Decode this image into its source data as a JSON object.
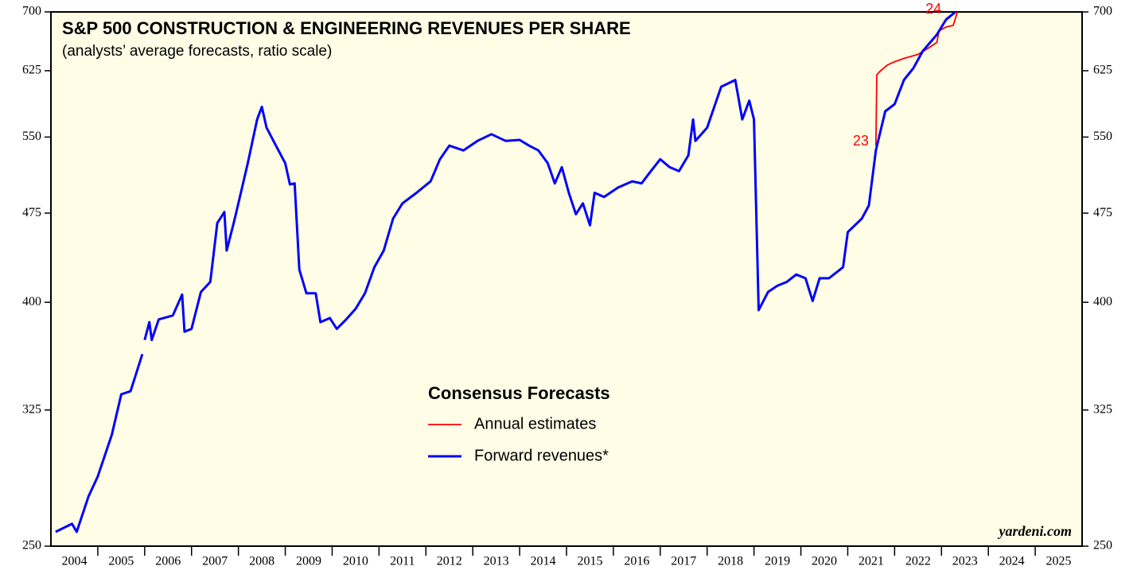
{
  "chart_data": {
    "type": "line",
    "title": "S&P 500 CONSTRUCTION & ENGINEERING REVENUES PER SHARE",
    "subtitle": "(analysts’ average forecasts, ratio scale)",
    "legend_title": "Consensus Forecasts",
    "source": "yardeni.com",
    "log_scale": true,
    "categories": [
      "2004",
      "2005",
      "2006",
      "2007",
      "2008",
      "2009",
      "2010",
      "2011",
      "2012",
      "2013",
      "2014",
      "2015",
      "2016",
      "2017",
      "2018",
      "2019",
      "2020",
      "2021",
      "2022",
      "2023",
      "2024",
      "2025"
    ],
    "xlim": [
      2004,
      2026
    ],
    "ylim": [
      250,
      700
    ],
    "yticks": [
      250,
      325,
      400,
      475,
      550,
      625,
      700
    ],
    "annotations": [
      {
        "text": "23",
        "x": 2021.45,
        "y": 545,
        "color": "#ff0000"
      },
      {
        "text": "24",
        "x": 2023.0,
        "y": 703,
        "color": "#ff0000"
      }
    ],
    "series": [
      {
        "name": "Annual estimates",
        "color": "#ff0000",
        "x": [
          2021.6,
          2021.62,
          2021.7,
          2021.85,
          2022.0,
          2022.2,
          2022.5,
          2022.7,
          2022.9,
          2022.95,
          2023.1,
          2023.25,
          2023.35
        ],
        "values": [
          541,
          620,
          625,
          632,
          636,
          640,
          645,
          652,
          660,
          675,
          680,
          682,
          702
        ]
      },
      {
        "name": "Forward revenues*",
        "color": "#0000ff",
        "x": [
          2004.1,
          2004.45,
          2004.55,
          2004.8,
          2005.0,
          2005.3,
          2005.5,
          2005.7,
          2005.95,
          null,
          2006.0,
          2006.1,
          2006.15,
          2006.3,
          2006.6,
          2006.8,
          2006.85,
          2007.0,
          2007.2,
          2007.4,
          2007.55,
          2007.7,
          2007.75,
          2007.9,
          2008.0,
          2008.2,
          2008.4,
          2008.5,
          2008.6,
          2008.8,
          2009.0,
          2009.1,
          2009.2,
          2009.3,
          2009.45,
          2009.65,
          2009.75,
          2009.95,
          2010.1,
          2010.3,
          2010.5,
          2010.7,
          2010.9,
          2011.1,
          2011.3,
          2011.5,
          2011.8,
          2012.1,
          2012.3,
          2012.5,
          2012.8,
          2013.1,
          2013.4,
          2013.7,
          2014.0,
          2014.2,
          2014.4,
          2014.6,
          2014.75,
          2014.9,
          2015.05,
          2015.2,
          2015.35,
          2015.5,
          2015.6,
          2015.8,
          2016.1,
          2016.4,
          2016.6,
          2016.8,
          2017.0,
          2017.2,
          2017.4,
          2017.6,
          2017.7,
          2017.75,
          2018.0,
          2018.3,
          2018.6,
          2018.75,
          2018.9,
          2019.0,
          2019.1,
          2019.3,
          2019.5,
          2019.7,
          2019.9,
          2020.1,
          2020.25,
          2020.4,
          2020.6,
          2020.9,
          2021.0,
          2021.3,
          2021.45,
          2021.6,
          2021.8,
          2022.0,
          2022.2,
          2022.4,
          2022.6,
          2022.9,
          2023.1,
          2023.3
        ],
        "values": [
          257,
          261,
          257,
          275,
          286,
          310,
          335,
          337,
          362,
          null,
          372,
          385,
          372,
          387,
          390,
          406,
          378,
          380,
          408,
          416,
          466,
          476,
          442,
          466,
          484,
          523,
          569,
          583,
          560,
          541,
          523,
          502,
          503,
          426,
          407,
          407,
          385,
          388,
          380,
          387,
          395,
          407,
          428,
          442,
          470,
          484,
          494,
          505,
          527,
          541,
          536,
          546,
          553,
          546,
          547,
          541,
          536,
          523,
          503,
          519,
          494,
          474,
          484,
          464,
          494,
          490,
          499,
          505,
          503,
          515,
          527,
          519,
          515,
          531,
          569,
          546,
          560,
          606,
          614,
          569,
          590,
          569,
          394,
          408,
          413,
          416,
          422,
          419,
          401,
          419,
          419,
          428,
          458,
          470,
          482,
          536,
          578,
          586,
          614,
          628,
          649,
          670,
          690,
          700
        ]
      }
    ]
  }
}
